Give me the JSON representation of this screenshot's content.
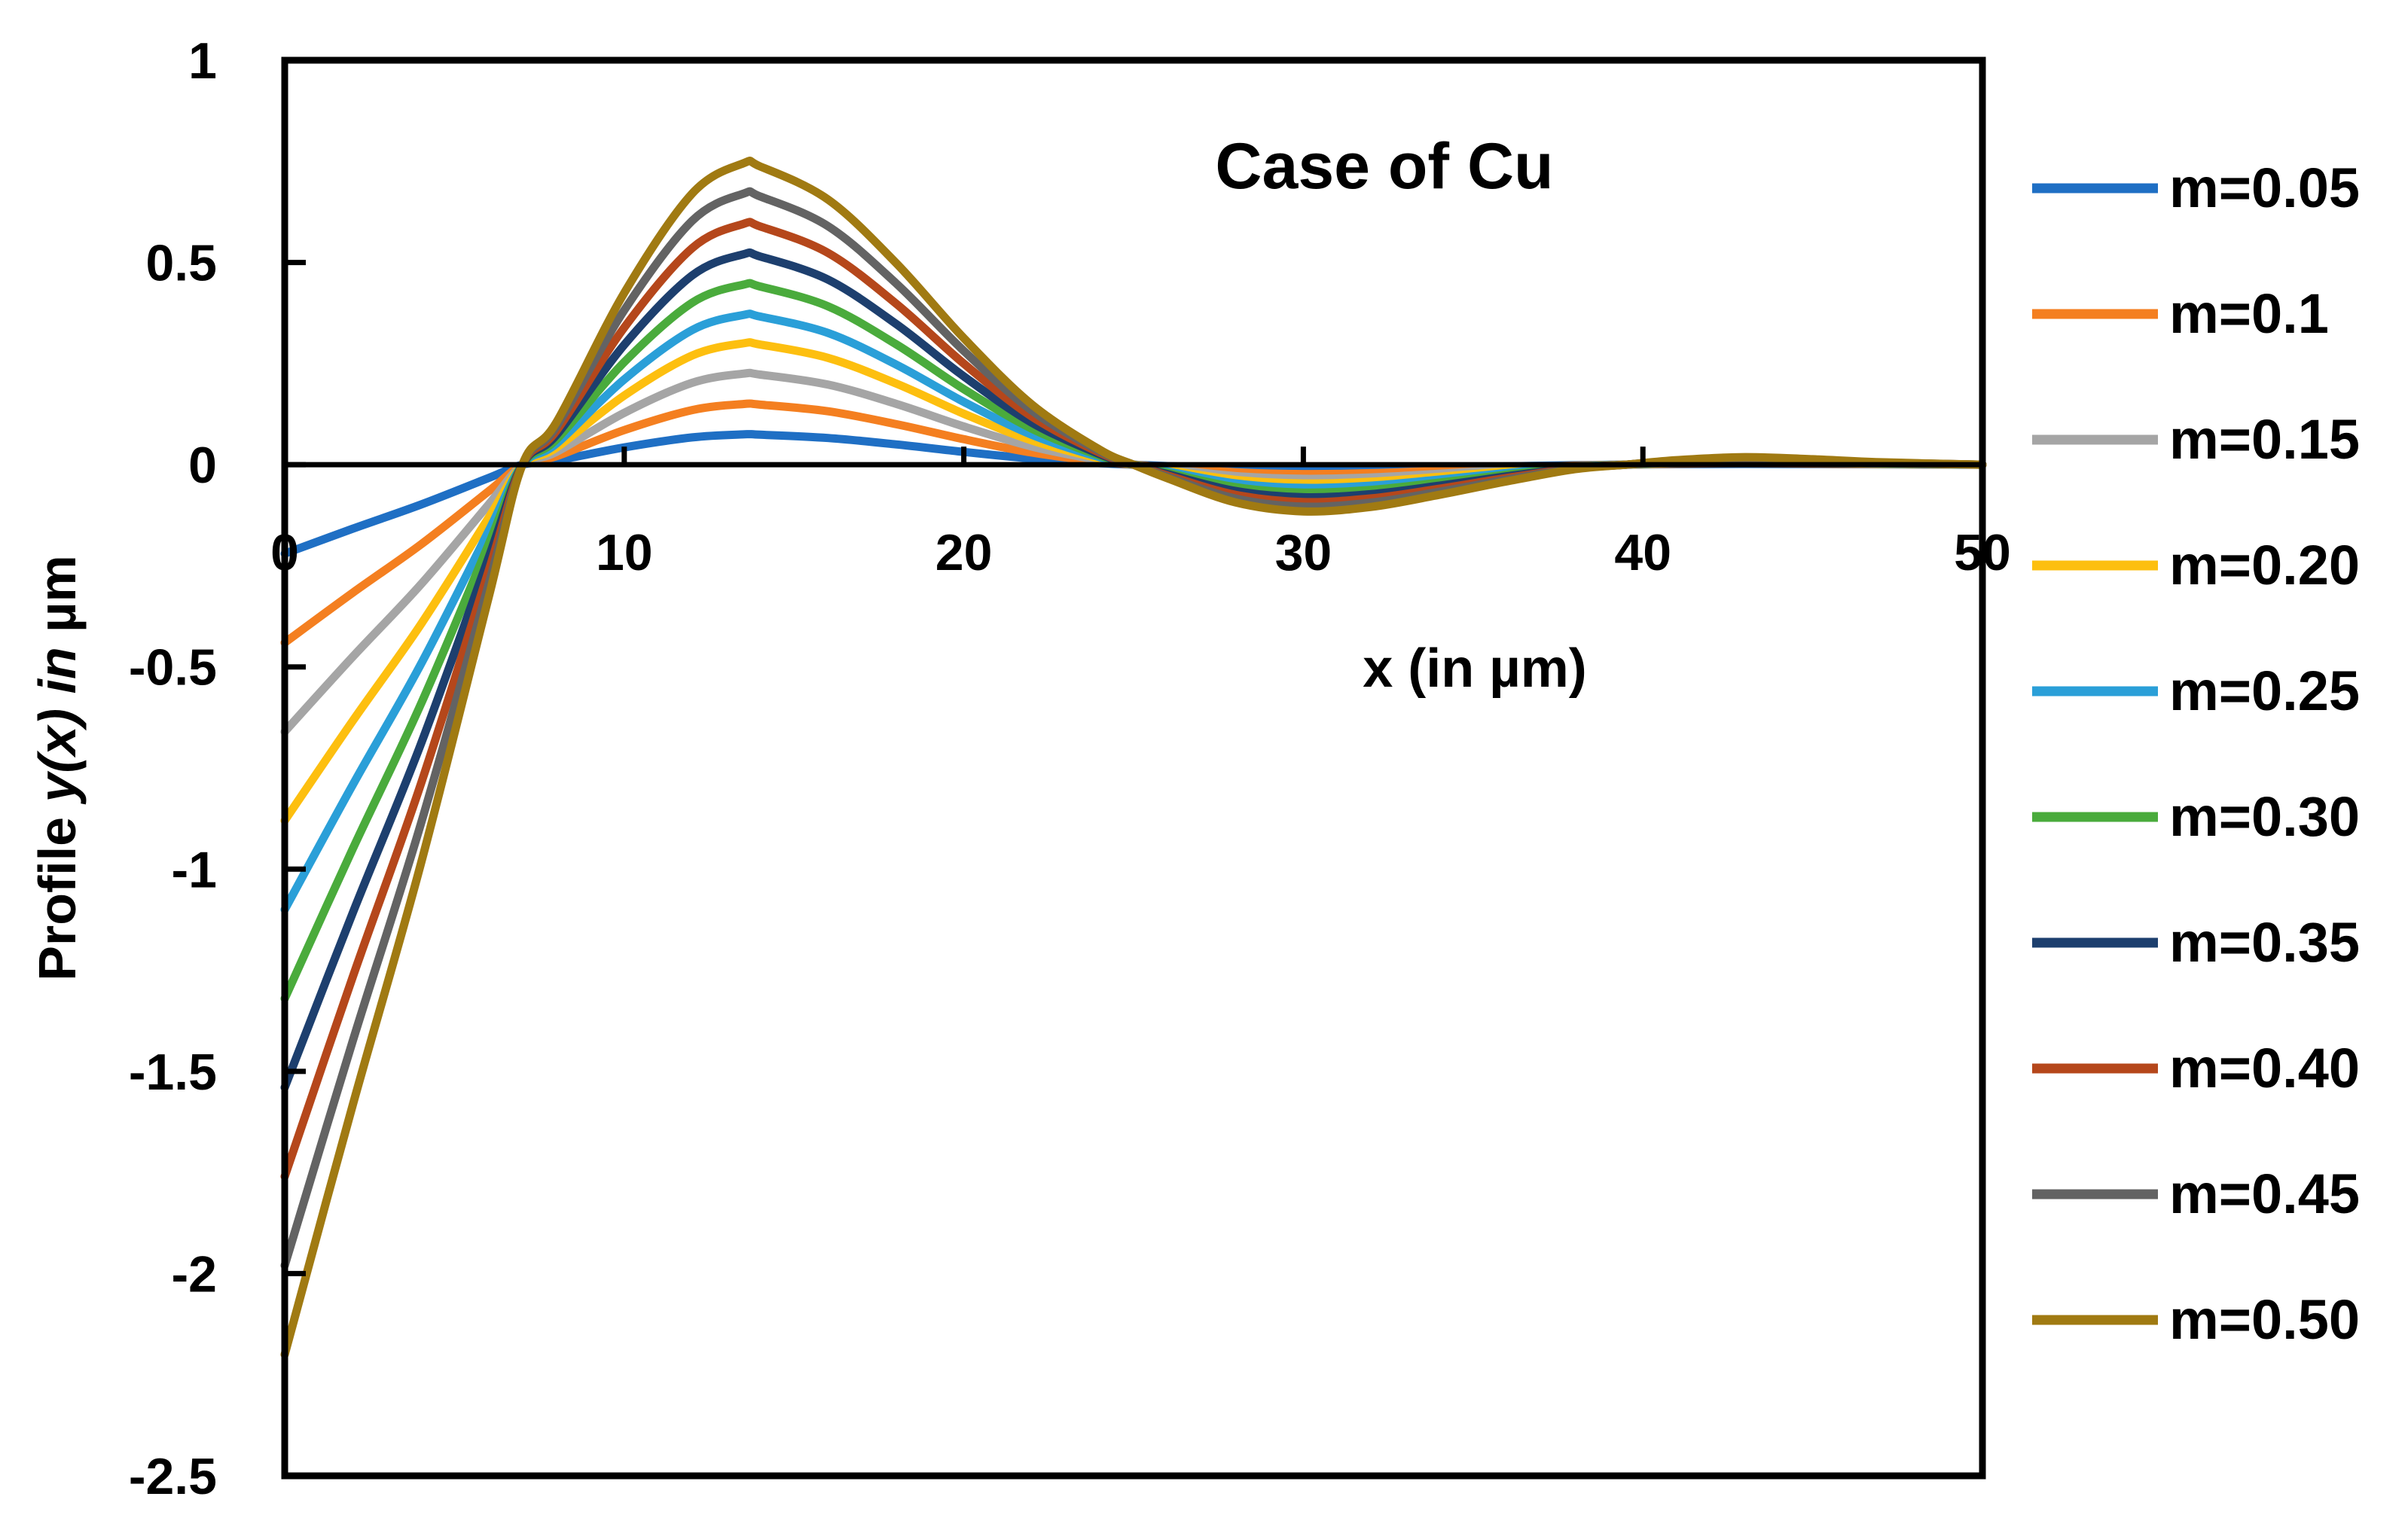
{
  "chart_data": {
    "type": "line",
    "title": "Case of Cu",
    "xlabel": "x (in µm)",
    "ylabel_parts": [
      "Profile ",
      "y(x)",
      " in",
      " µm"
    ],
    "xlim": [
      0,
      50
    ],
    "ylim": [
      -2.5,
      1
    ],
    "x_ticks": [
      "0",
      "10",
      "20",
      "30",
      "40",
      "50"
    ],
    "y_ticks": [
      "1",
      "0.5",
      "0",
      "-0.5",
      "-1",
      "-1.5",
      "-2",
      "-2.5"
    ],
    "x_tick_values": [
      0,
      10,
      20,
      30,
      40,
      50
    ],
    "y_tick_values": [
      1,
      0.5,
      0,
      -0.5,
      -1,
      -1.5,
      -2,
      -2.5
    ],
    "x": [
      0,
      2,
      4,
      6,
      7,
      8,
      10,
      12,
      13.5,
      14,
      16,
      18,
      20,
      22,
      24,
      25,
      26,
      28,
      30,
      32,
      34,
      36,
      38,
      39.5,
      41,
      43,
      45,
      47,
      50
    ],
    "shape": [
      -1,
      -0.72,
      -0.45,
      -0.15,
      0,
      0.14,
      0.57,
      0.9,
      1,
      0.99,
      0.88,
      0.67,
      0.42,
      0.2,
      0.05,
      0,
      -0.045,
      -0.125,
      -0.155,
      -0.14,
      -0.1,
      -0.055,
      -0.015,
      0,
      0.015,
      0.025,
      0.018,
      0.008,
      0
    ],
    "series": [
      {
        "name": "m=0.05",
        "color": "#1f6fc4",
        "y0": -0.22,
        "peak": 0.075
      },
      {
        "name": "m=0.1",
        "color": "#f47f20",
        "y0": -0.44,
        "peak": 0.15
      },
      {
        "name": "m=0.15",
        "color": "#a5a5a5",
        "y0": -0.66,
        "peak": 0.225
      },
      {
        "name": "m=0.20",
        "color": "#fdbf0f",
        "y0": -0.88,
        "peak": 0.3
      },
      {
        "name": "m=0.25",
        "color": "#2a9fd8",
        "y0": -1.1,
        "peak": 0.37
      },
      {
        "name": "m=0.30",
        "color": "#4aab3c",
        "y0": -1.32,
        "peak": 0.445
      },
      {
        "name": "m=0.35",
        "color": "#1d3f6e",
        "y0": -1.54,
        "peak": 0.52
      },
      {
        "name": "m=0.40",
        "color": "#b5471b",
        "y0": -1.76,
        "peak": 0.595
      },
      {
        "name": "m=0.45",
        "color": "#636363",
        "y0": -1.98,
        "peak": 0.67
      },
      {
        "name": "m=0.50",
        "color": "#a07a12",
        "y0": -2.2,
        "peak": 0.745
      }
    ]
  }
}
